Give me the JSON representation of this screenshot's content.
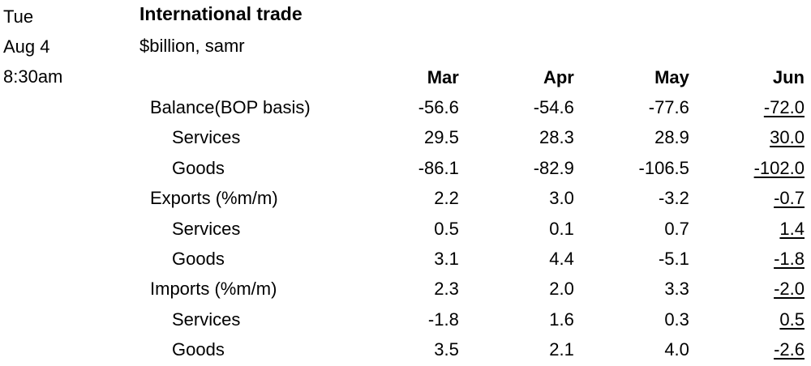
{
  "release": {
    "day": "Tue",
    "date": "Aug 4",
    "time": "8:30am"
  },
  "indicator": {
    "title": "International trade",
    "units": "$billion, samr"
  },
  "table": {
    "columns": [
      "Mar",
      "Apr",
      "May",
      "Jun"
    ],
    "rows": [
      {
        "label": "Balance(BOP basis)",
        "level": 0,
        "values": [
          "-56.6",
          "-54.6",
          "-77.6",
          "-72.0"
        ]
      },
      {
        "label": "Services",
        "level": 1,
        "values": [
          "29.5",
          "28.3",
          "28.9",
          "30.0"
        ]
      },
      {
        "label": "Goods",
        "level": 1,
        "values": [
          "-86.1",
          "-82.9",
          "-106.5",
          "-102.0"
        ]
      },
      {
        "label": "Exports (%m/m)",
        "level": 0,
        "values": [
          "2.2",
          "3.0",
          "-3.2",
          "-0.7"
        ]
      },
      {
        "label": "Services",
        "level": 1,
        "values": [
          "0.5",
          "0.1",
          "0.7",
          "1.4"
        ]
      },
      {
        "label": "Goods",
        "level": 1,
        "values": [
          "3.1",
          "4.4",
          "-5.1",
          "-1.8"
        ]
      },
      {
        "label": "Imports (%m/m)",
        "level": 0,
        "values": [
          "2.3",
          "2.0",
          "3.3",
          "-2.0"
        ]
      },
      {
        "label": "Services",
        "level": 1,
        "values": [
          "-1.8",
          "1.6",
          "0.3",
          "0.5"
        ]
      },
      {
        "label": "Goods",
        "level": 1,
        "values": [
          "3.5",
          "2.1",
          "4.0",
          "-2.6"
        ]
      }
    ]
  }
}
